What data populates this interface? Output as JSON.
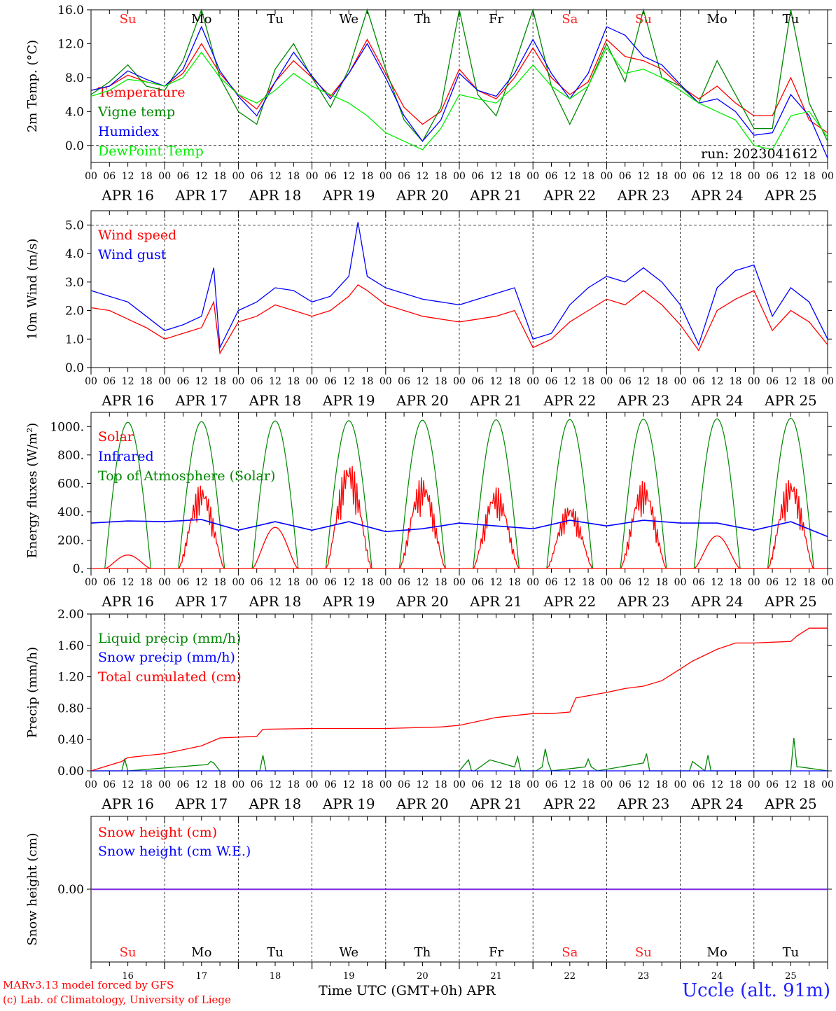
{
  "run_label": "run: 2023041612",
  "credit_line_1": "MARv3.13 model forced by GFS",
  "credit_line_2": "(c) Lab. of Climatology, University of Liege",
  "station_label": "Uccle (alt. 91m)",
  "bottom_axis_title": "Time UTC (GMT+0h) APR",
  "time_axis": {
    "hour_ticks": [
      "00",
      "06",
      "12",
      "18"
    ],
    "date_labels": [
      "APR 16",
      "APR 17",
      "APR 18",
      "APR 19",
      "APR 20",
      "APR 21",
      "APR 22",
      "APR 23",
      "APR 24",
      "APR 25"
    ],
    "day_numbers": [
      "16",
      "17",
      "18",
      "19",
      "20",
      "21",
      "22",
      "23",
      "24",
      "25"
    ],
    "weekdays": [
      {
        "label": "Su",
        "color": "#ff2020"
      },
      {
        "label": "Mo",
        "color": "#000000"
      },
      {
        "label": "Tu",
        "color": "#000000"
      },
      {
        "label": "We",
        "color": "#000000"
      },
      {
        "label": "Th",
        "color": "#000000"
      },
      {
        "label": "Fr",
        "color": "#000000"
      },
      {
        "label": "Sa",
        "color": "#ff2020"
      },
      {
        "label": "Su",
        "color": "#ff2020"
      },
      {
        "label": "Mo",
        "color": "#000000"
      },
      {
        "label": "Tu",
        "color": "#000000"
      }
    ]
  },
  "chart_data": [
    {
      "type": "line",
      "ylabel": "2m Temp. (°C)",
      "ylim": [
        -2,
        16
      ],
      "yticks": [
        "16.0",
        "12.0",
        "8.0",
        "4.0",
        "0.0"
      ],
      "ytick_values": [
        16,
        12,
        8,
        4,
        0
      ],
      "dashed_reference": 0,
      "x_units": "hours since APR 16 00 UTC",
      "series": [
        {
          "name": "Temperature",
          "color": "#ff0000",
          "x": [
            0,
            6,
            12,
            18,
            24,
            30,
            36,
            42,
            48,
            54,
            60,
            66,
            72,
            78,
            84,
            90,
            96,
            102,
            108,
            114,
            120,
            126,
            132,
            138,
            144,
            150,
            156,
            162,
            168,
            174,
            180,
            186,
            192,
            198,
            204,
            210,
            216,
            222,
            228,
            234,
            240
          ],
          "y": [
            6.5,
            7.0,
            8.3,
            7.5,
            7.0,
            8.5,
            12.0,
            8.5,
            6.0,
            4.3,
            7.5,
            10.0,
            8.0,
            5.8,
            8.5,
            12.5,
            8.5,
            4.5,
            2.5,
            4.0,
            9.0,
            6.5,
            5.5,
            8.0,
            11.5,
            8.0,
            6.0,
            7.5,
            12.5,
            10.5,
            10.0,
            9.0,
            7.0,
            5.5,
            7.0,
            5.0,
            3.5,
            3.5,
            8.0,
            3.0,
            1.5
          ]
        },
        {
          "name": "Vigne temp",
          "color": "#008800",
          "x": [
            0,
            6,
            12,
            18,
            24,
            30,
            36,
            42,
            48,
            54,
            60,
            66,
            72,
            78,
            84,
            90,
            96,
            102,
            108,
            114,
            120,
            126,
            132,
            138,
            144,
            150,
            156,
            162,
            168,
            174,
            180,
            186,
            192,
            198,
            204,
            210,
            216,
            222,
            228,
            234,
            240
          ],
          "y": [
            6.0,
            7.5,
            9.5,
            7.0,
            6.5,
            10.0,
            16.0,
            8.0,
            4.0,
            2.5,
            9.0,
            12.0,
            8.0,
            4.5,
            9.0,
            16.0,
            9.0,
            3.0,
            0.5,
            4.5,
            16.0,
            6.0,
            3.5,
            9.5,
            16.0,
            7.0,
            2.5,
            7.0,
            12.0,
            7.5,
            16.0,
            8.0,
            7.0,
            5.0,
            10.0,
            6.0,
            2.0,
            2.0,
            16.0,
            5.0,
            0.5
          ]
        },
        {
          "name": "Humidex",
          "color": "#0000ff",
          "x": [
            0,
            6,
            12,
            18,
            24,
            30,
            36,
            42,
            48,
            54,
            60,
            66,
            72,
            78,
            84,
            90,
            96,
            102,
            108,
            114,
            120,
            126,
            132,
            138,
            144,
            150,
            156,
            162,
            168,
            174,
            180,
            186,
            192,
            198,
            204,
            210,
            216,
            222,
            228,
            234,
            240
          ],
          "y": [
            6.5,
            7.0,
            8.8,
            7.8,
            7.0,
            9.0,
            14.0,
            8.8,
            5.8,
            3.5,
            7.5,
            11.0,
            8.2,
            5.5,
            8.5,
            12.0,
            8.0,
            3.5,
            0.5,
            3.0,
            8.5,
            6.5,
            5.8,
            8.5,
            12.5,
            8.5,
            5.5,
            8.5,
            14.0,
            13.0,
            10.5,
            9.5,
            7.2,
            5.0,
            5.5,
            4.0,
            1.2,
            1.5,
            6.0,
            3.5,
            -1.5
          ]
        },
        {
          "name": "DewPoint Temp",
          "color": "#00ee00",
          "x": [
            0,
            6,
            12,
            18,
            24,
            30,
            36,
            42,
            48,
            54,
            60,
            66,
            72,
            78,
            84,
            90,
            96,
            102,
            108,
            114,
            120,
            126,
            132,
            138,
            144,
            150,
            156,
            162,
            168,
            174,
            180,
            186,
            192,
            198,
            204,
            210,
            216,
            222,
            228,
            234,
            240
          ],
          "y": [
            5.8,
            6.5,
            7.8,
            7.5,
            7.0,
            8.0,
            11.0,
            8.0,
            6.0,
            5.0,
            6.5,
            8.5,
            7.0,
            6.0,
            5.0,
            3.5,
            1.5,
            0.5,
            -0.5,
            2.0,
            6.0,
            5.5,
            5.0,
            7.0,
            9.5,
            7.0,
            5.5,
            7.0,
            11.5,
            8.5,
            9.0,
            8.0,
            6.5,
            5.0,
            4.0,
            3.0,
            0.0,
            -0.5,
            3.5,
            4.0,
            1.0
          ]
        }
      ]
    },
    {
      "type": "line",
      "ylabel": "10m Wind (m/s)",
      "ylim": [
        0,
        5.5
      ],
      "yticks": [
        "5.0",
        "4.0",
        "3.0",
        "2.0",
        "1.0",
        "0.0"
      ],
      "ytick_values": [
        5,
        4,
        3,
        2,
        1,
        0
      ],
      "dashed_reference": 5,
      "x_units": "hours since APR 16 00 UTC",
      "series": [
        {
          "name": "Wind speed",
          "color": "#ff0000",
          "x": [
            0,
            6,
            12,
            18,
            24,
            30,
            36,
            40,
            42,
            48,
            54,
            60,
            66,
            72,
            78,
            84,
            87,
            90,
            96,
            102,
            108,
            114,
            120,
            126,
            132,
            138,
            144,
            150,
            156,
            162,
            168,
            174,
            180,
            186,
            192,
            198,
            204,
            210,
            216,
            222,
            228,
            234,
            240
          ],
          "y": [
            2.1,
            2.0,
            1.7,
            1.4,
            1.0,
            1.2,
            1.4,
            2.3,
            0.5,
            1.6,
            1.8,
            2.2,
            2.0,
            1.8,
            2.0,
            2.5,
            2.9,
            2.7,
            2.2,
            2.0,
            1.8,
            1.7,
            1.6,
            1.7,
            1.8,
            2.0,
            0.7,
            1.0,
            1.6,
            2.0,
            2.4,
            2.2,
            2.7,
            2.2,
            1.5,
            0.6,
            2.0,
            2.4,
            2.7,
            1.3,
            2.0,
            1.6,
            0.8
          ]
        },
        {
          "name": "Wind gust",
          "color": "#0000ff",
          "x": [
            0,
            6,
            12,
            18,
            24,
            30,
            36,
            40,
            42,
            48,
            54,
            60,
            66,
            72,
            78,
            84,
            87,
            90,
            96,
            102,
            108,
            114,
            120,
            126,
            132,
            138,
            144,
            150,
            156,
            162,
            168,
            174,
            180,
            186,
            192,
            198,
            204,
            210,
            216,
            222,
            228,
            234,
            240
          ],
          "y": [
            2.7,
            2.5,
            2.3,
            1.8,
            1.3,
            1.5,
            1.8,
            3.5,
            0.7,
            2.0,
            2.3,
            2.8,
            2.7,
            2.3,
            2.5,
            3.2,
            5.1,
            3.2,
            2.8,
            2.6,
            2.4,
            2.3,
            2.2,
            2.4,
            2.6,
            2.8,
            1.0,
            1.2,
            2.2,
            2.8,
            3.2,
            3.0,
            3.5,
            3.0,
            2.2,
            0.8,
            2.8,
            3.4,
            3.6,
            1.8,
            2.8,
            2.3,
            1.0
          ]
        }
      ]
    },
    {
      "type": "line",
      "ylabel": "Energy fluxes (W/m²)",
      "ylim": [
        0,
        1100
      ],
      "yticks": [
        "1000.",
        "800.",
        "600.",
        "400.",
        "200.",
        "0."
      ],
      "ytick_values": [
        1000,
        800,
        600,
        400,
        200,
        0
      ],
      "x_units": "hours since APR 16 00 UTC",
      "daily_solar_peak": [
        95,
        600,
        290,
        770,
        650,
        580,
        460,
        620,
        230,
        650
      ],
      "daily_toa_peak": [
        1030,
        1035,
        1040,
        1042,
        1045,
        1048,
        1050,
        1052,
        1055,
        1058
      ],
      "series": [
        {
          "name": "Solar",
          "color": "#ff0000"
        },
        {
          "name": "Infrared",
          "color": "#0000ff",
          "x": [
            0,
            12,
            24,
            36,
            48,
            60,
            72,
            84,
            96,
            108,
            120,
            132,
            144,
            156,
            168,
            180,
            192,
            204,
            216,
            228,
            240
          ],
          "y": [
            320,
            335,
            330,
            345,
            270,
            330,
            270,
            330,
            260,
            280,
            320,
            300,
            280,
            340,
            300,
            340,
            320,
            320,
            270,
            330,
            225
          ]
        },
        {
          "name": "Top of Atmosphere (Solar)",
          "color": "#008800"
        }
      ]
    },
    {
      "type": "line",
      "ylabel": "Precip (mm/h)",
      "ylim": [
        0,
        2.0
      ],
      "yticks": [
        "2.00",
        "1.60",
        "1.20",
        "0.80",
        "0.40",
        "0.00"
      ],
      "ytick_values": [
        2.0,
        1.6,
        1.2,
        0.8,
        0.4,
        0
      ],
      "x_units": "hours since APR 16 00 UTC",
      "series": [
        {
          "name": "Liquid precip (mm/h)",
          "color": "#008800",
          "x": [
            0,
            10,
            11,
            12,
            38,
            39,
            40,
            41,
            42,
            55,
            56,
            57,
            80,
            100,
            120,
            123,
            124,
            125,
            130,
            138,
            139,
            140,
            145,
            147,
            148,
            149,
            150,
            161,
            162,
            163,
            165,
            180,
            181,
            182,
            195,
            196,
            200,
            201,
            202,
            220,
            228,
            229,
            230,
            231,
            240
          ],
          "y": [
            0,
            0,
            0.15,
            0,
            0.08,
            0.12,
            0.1,
            0.05,
            0,
            0,
            0.2,
            0,
            0,
            0,
            0,
            0.14,
            0,
            0,
            0.14,
            0.05,
            0.18,
            0,
            0,
            0.05,
            0.28,
            0.1,
            0,
            0.05,
            0.15,
            0.05,
            0,
            0.1,
            0.22,
            0,
            0,
            0.12,
            0,
            0.2,
            0,
            0,
            0,
            0.42,
            0.05,
            0.05,
            0
          ]
        },
        {
          "name": "Snow precip (mm/h)",
          "color": "#0000ff",
          "x": [
            0,
            240
          ],
          "y": [
            0,
            0
          ]
        },
        {
          "name": "Total cumulated (cm)",
          "color": "#ff0000",
          "x": [
            0,
            10,
            12,
            24,
            36,
            42,
            54,
            56,
            72,
            96,
            114,
            120,
            126,
            132,
            144,
            150,
            156,
            158,
            168,
            174,
            180,
            186,
            192,
            196,
            204,
            210,
            216,
            228,
            230,
            234,
            240
          ],
          "y": [
            0,
            0.12,
            0.17,
            0.22,
            0.32,
            0.42,
            0.44,
            0.53,
            0.54,
            0.54,
            0.56,
            0.58,
            0.63,
            0.68,
            0.73,
            0.73,
            0.75,
            0.93,
            1.0,
            1.05,
            1.08,
            1.15,
            1.3,
            1.4,
            1.55,
            1.63,
            1.63,
            1.65,
            1.72,
            1.82,
            1.82
          ]
        }
      ]
    },
    {
      "type": "line",
      "ylabel": "Snow height (cm)",
      "ylim": [
        -1,
        1
      ],
      "yticks": [
        "0.00"
      ],
      "ytick_values": [
        0
      ],
      "x_units": "hours since APR 16 00 UTC",
      "series": [
        {
          "name": "Snow height (cm)",
          "color": "#ff0000",
          "x": [
            0,
            240
          ],
          "y": [
            0,
            0
          ]
        },
        {
          "name": "Snow height (cm W.E.)",
          "color": "#0000ff",
          "x": [
            0,
            240
          ],
          "y": [
            0,
            0
          ]
        }
      ]
    }
  ]
}
